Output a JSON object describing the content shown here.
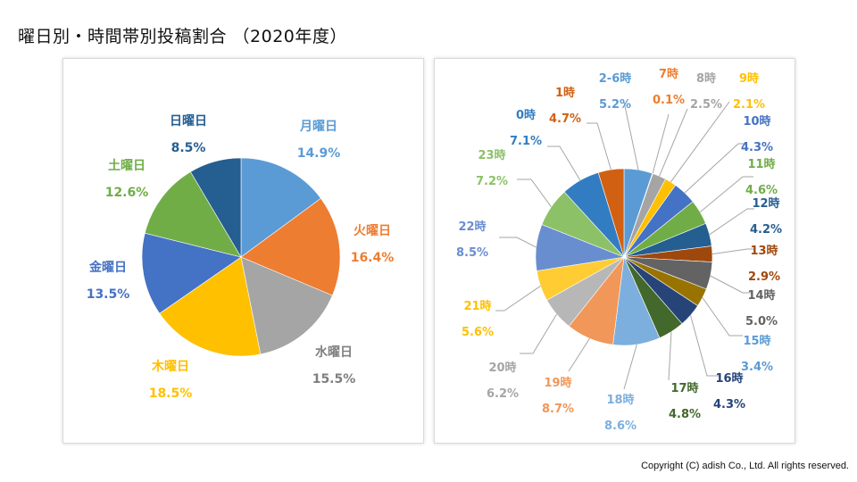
{
  "title": "曜日別・時間帯別投稿割合 （2020年度）",
  "copyright": "Copyright (C) adish Co., Ltd. All rights reserved.",
  "chart_data": [
    {
      "type": "pie",
      "categories": [
        "月曜日",
        "火曜日",
        "水曜日",
        "木曜日",
        "金曜日",
        "土曜日",
        "日曜日"
      ],
      "values": [
        14.9,
        16.4,
        15.5,
        18.5,
        13.5,
        12.6,
        8.5
      ],
      "value_labels": [
        "14.9%",
        "16.4%",
        "15.5%",
        "18.5%",
        "13.5%",
        "12.6%",
        "8.5%"
      ],
      "colors": [
        "#5B9BD5",
        "#ED7D31",
        "#A5A5A5",
        "#FFC000",
        "#4472C4",
        "#70AD47",
        "#255E91"
      ],
      "label_colors": [
        "#5B9BD5",
        "#ED7D31",
        "#7F7F7F",
        "#FFC000",
        "#4472C4",
        "#70AD47",
        "#255E91"
      ],
      "start_angle_deg": 0,
      "direction": "clockwise"
    },
    {
      "type": "pie",
      "categories": [
        "2-6時",
        "7時",
        "8時",
        "9時",
        "10時",
        "11時",
        "12時",
        "13時",
        "14時",
        "15時",
        "16時",
        "17時",
        "18時",
        "19時",
        "20時",
        "21時",
        "22時",
        "23時",
        "0時",
        "1時"
      ],
      "values": [
        5.2,
        0.1,
        2.5,
        2.1,
        4.3,
        4.6,
        4.2,
        2.9,
        5.0,
        3.4,
        4.3,
        4.8,
        8.6,
        8.7,
        6.2,
        5.6,
        8.5,
        7.2,
        7.1,
        4.7
      ],
      "value_labels": [
        "5.2%",
        "0.1%",
        "2.5%",
        "2.1%",
        "4.3%",
        "4.6%",
        "4.2%",
        "2.9%",
        "5.0%",
        "3.4%",
        "4.3%",
        "4.8%",
        "8.6%",
        "8.7%",
        "6.2%",
        "5.6%",
        "8.5%",
        "7.2%",
        "7.1%",
        "4.7%"
      ],
      "colors": [
        "#5B9BD5",
        "#ED7D31",
        "#A5A5A5",
        "#FFC000",
        "#4472C4",
        "#70AD47",
        "#255E91",
        "#9E480E",
        "#636363",
        "#997300",
        "#264478",
        "#43682B",
        "#7CAFDD",
        "#F1975A",
        "#B7B7B7",
        "#FFCD33",
        "#698ED0",
        "#8CC168",
        "#327DC2",
        "#D26012"
      ],
      "label_colors": [
        "#5B9BD5",
        "#ED7D31",
        "#A5A5A5",
        "#FFC000",
        "#4472C4",
        "#70AD47",
        "#255E91",
        "#9E480E",
        "#636363",
        "#5B9BD5",
        "#264478",
        "#43682B",
        "#7CAFDD",
        "#F1975A",
        "#A5A5A5",
        "#FFC000",
        "#698ED0",
        "#8CC168",
        "#327DC2",
        "#D26012"
      ],
      "start_angle_deg": 0,
      "direction": "clockwise"
    }
  ]
}
